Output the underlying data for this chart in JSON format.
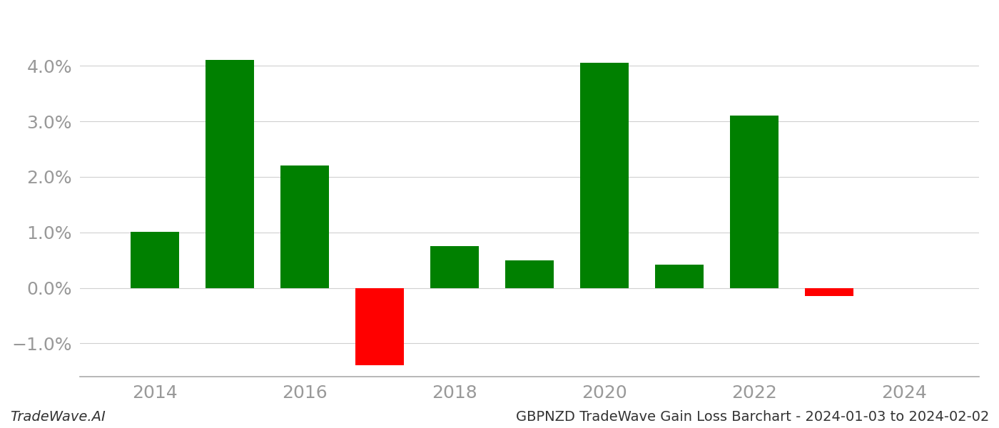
{
  "years": [
    2014,
    2015,
    2016,
    2017,
    2018,
    2019,
    2020,
    2021,
    2022,
    2023
  ],
  "values": [
    0.01005,
    0.041,
    0.022,
    -0.014,
    0.0075,
    0.005,
    0.0405,
    0.0042,
    0.031,
    -0.0015
  ],
  "bar_colors": [
    "#008000",
    "#008000",
    "#008000",
    "#ff0000",
    "#008000",
    "#008000",
    "#008000",
    "#008000",
    "#008000",
    "#ff0000"
  ],
  "ylim": [
    -0.016,
    0.048
  ],
  "xlim": [
    2013.0,
    2025.0
  ],
  "xticks": [
    2014,
    2016,
    2018,
    2020,
    2022,
    2024
  ],
  "yticks": [
    -0.01,
    0.0,
    0.01,
    0.02,
    0.03,
    0.04
  ],
  "footer_left": "TradeWave.AI",
  "footer_right": "GBPNZD TradeWave Gain Loss Barchart - 2024-01-03 to 2024-02-02",
  "background_color": "#ffffff",
  "bar_width": 0.65,
  "grid_color": "#d0d0d0",
  "tick_color": "#999999",
  "font_size_ticks": 18,
  "font_size_footer": 14
}
